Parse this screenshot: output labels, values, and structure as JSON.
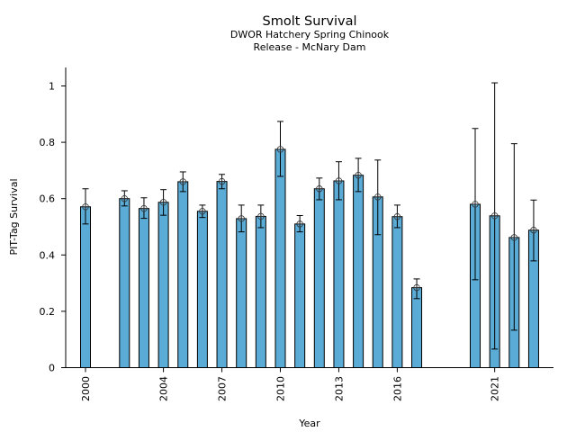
{
  "chart_data": {
    "type": "bar",
    "title": "Smolt Survival",
    "subtitle_lines": [
      "DWOR Hatchery Spring Chinook",
      "Release - McNary Dam"
    ],
    "xlabel": "Year",
    "ylabel": "PIT-Tag Survival",
    "ylim": [
      0,
      1.05
    ],
    "xlim": [
      1999.0,
      2024.0
    ],
    "yticks": [
      0,
      0.2,
      0.4,
      0.6,
      0.8,
      1
    ],
    "ytick_labels": [
      "0",
      "0.2",
      "0.4",
      "0.6",
      "0.8",
      "1"
    ],
    "xticks": [
      2000,
      2004,
      2007,
      2010,
      2013,
      2016,
      2021
    ],
    "xtick_labels": [
      "2000",
      "2004",
      "2007",
      "2010",
      "2013",
      "2016",
      "2021"
    ],
    "grid": false,
    "bar_color": "#5aabd6",
    "bar_edge_color": "#000000",
    "error_color": "#000000",
    "series": [
      {
        "name": "PIT-Tag Survival",
        "points": [
          {
            "year": 2000,
            "value": 0.571,
            "lower": 0.51,
            "upper": 0.635
          },
          {
            "year": 2002,
            "value": 0.6,
            "lower": 0.574,
            "upper": 0.628
          },
          {
            "year": 2003,
            "value": 0.565,
            "lower": 0.53,
            "upper": 0.603
          },
          {
            "year": 2004,
            "value": 0.587,
            "lower": 0.541,
            "upper": 0.632
          },
          {
            "year": 2005,
            "value": 0.66,
            "lower": 0.625,
            "upper": 0.695
          },
          {
            "year": 2006,
            "value": 0.555,
            "lower": 0.533,
            "upper": 0.577
          },
          {
            "year": 2007,
            "value": 0.661,
            "lower": 0.635,
            "upper": 0.686
          },
          {
            "year": 2008,
            "value": 0.529,
            "lower": 0.482,
            "upper": 0.577
          },
          {
            "year": 2009,
            "value": 0.537,
            "lower": 0.497,
            "upper": 0.577
          },
          {
            "year": 2010,
            "value": 0.775,
            "lower": 0.679,
            "upper": 0.874
          },
          {
            "year": 2011,
            "value": 0.51,
            "lower": 0.482,
            "upper": 0.54
          },
          {
            "year": 2012,
            "value": 0.635,
            "lower": 0.596,
            "upper": 0.673
          },
          {
            "year": 2013,
            "value": 0.663,
            "lower": 0.596,
            "upper": 0.731
          },
          {
            "year": 2014,
            "value": 0.683,
            "lower": 0.625,
            "upper": 0.743
          },
          {
            "year": 2015,
            "value": 0.606,
            "lower": 0.472,
            "upper": 0.737
          },
          {
            "year": 2016,
            "value": 0.536,
            "lower": 0.497,
            "upper": 0.577
          },
          {
            "year": 2017,
            "value": 0.284,
            "lower": 0.245,
            "upper": 0.315
          },
          {
            "year": 2020,
            "value": 0.58,
            "lower": 0.312,
            "upper": 0.849
          },
          {
            "year": 2021,
            "value": 0.539,
            "lower": 0.066,
            "upper": 1.011
          },
          {
            "year": 2022,
            "value": 0.462,
            "lower": 0.133,
            "upper": 0.795
          },
          {
            "year": 2023,
            "value": 0.488,
            "lower": 0.379,
            "upper": 0.595
          }
        ]
      }
    ]
  }
}
